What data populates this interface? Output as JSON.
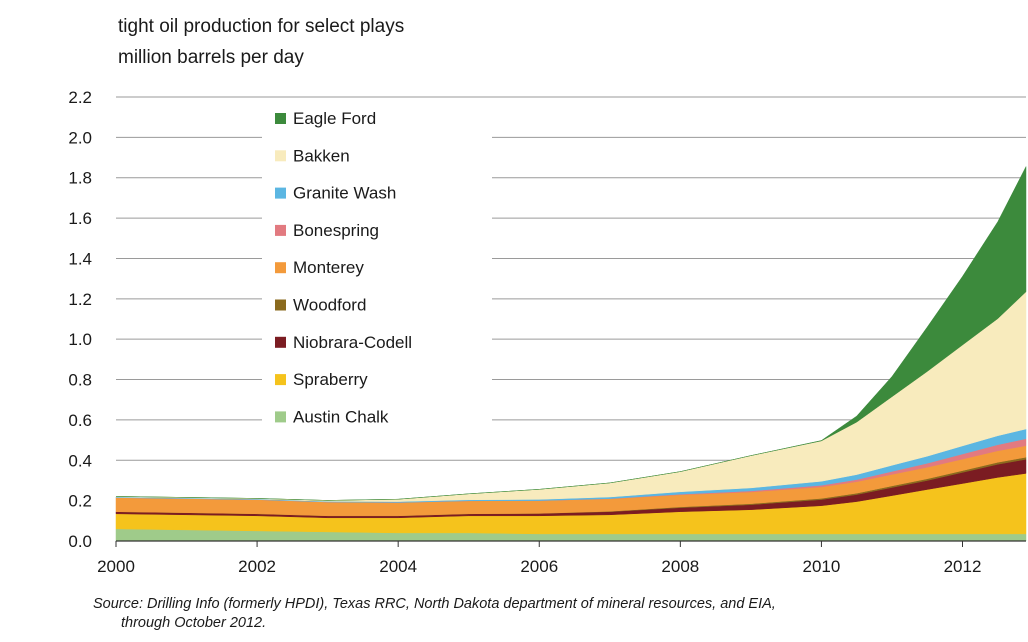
{
  "chart_data": {
    "type": "area",
    "title_lines": [
      "tight oil production for select plays",
      "million barrels per day"
    ],
    "xlabel": "",
    "ylabel": "",
    "xlim": [
      2000,
      2012.9
    ],
    "ylim": [
      0,
      2.2
    ],
    "x_ticks": [
      "2000",
      "2002",
      "2004",
      "2006",
      "2008",
      "2010",
      "2012"
    ],
    "y_ticks": [
      "0.0",
      "0.2",
      "0.4",
      "0.6",
      "0.8",
      "1.0",
      "1.2",
      "1.4",
      "1.6",
      "1.8",
      "2.0",
      "2.2"
    ],
    "grid": "horizontal",
    "legend_position": "upper-left",
    "legend_order": [
      "Eagle Ford",
      "Bakken",
      "Granite Wash",
      "Bonespring",
      "Monterey",
      "Woodford",
      "Niobrara-Codell",
      "Spraberry",
      "Austin Chalk"
    ],
    "x": [
      2000,
      2001,
      2002,
      2003,
      2004,
      2005,
      2006,
      2007,
      2008,
      2009,
      2010,
      2010.5,
      2011,
      2011.5,
      2012,
      2012.5,
      2012.9
    ],
    "series": [
      {
        "name": "Austin Chalk",
        "color": "#9fcb8a",
        "values": [
          0.06,
          0.055,
          0.05,
          0.045,
          0.04,
          0.04,
          0.035,
          0.035,
          0.035,
          0.035,
          0.035,
          0.035,
          0.035,
          0.035,
          0.035,
          0.035,
          0.035
        ]
      },
      {
        "name": "Spraberry",
        "color": "#f5c31c",
        "values": [
          0.075,
          0.075,
          0.075,
          0.07,
          0.075,
          0.085,
          0.09,
          0.095,
          0.11,
          0.12,
          0.14,
          0.16,
          0.19,
          0.22,
          0.25,
          0.28,
          0.3
        ]
      },
      {
        "name": "Niobrara-Codell",
        "color": "#7b1c22",
        "values": [
          0.01,
          0.01,
          0.01,
          0.01,
          0.01,
          0.01,
          0.012,
          0.015,
          0.02,
          0.025,
          0.03,
          0.035,
          0.04,
          0.045,
          0.055,
          0.065,
          0.07
        ]
      },
      {
        "name": "Woodford",
        "color": "#8a6a1e",
        "values": [
          0.0,
          0.0,
          0.0,
          0.0,
          0.0,
          0.0,
          0.0,
          0.002,
          0.004,
          0.005,
          0.006,
          0.007,
          0.008,
          0.008,
          0.009,
          0.01,
          0.01
        ]
      },
      {
        "name": "Monterey",
        "color": "#f39a3b",
        "values": [
          0.07,
          0.07,
          0.07,
          0.068,
          0.066,
          0.064,
          0.063,
          0.062,
          0.06,
          0.058,
          0.057,
          0.057,
          0.057,
          0.057,
          0.057,
          0.057,
          0.057
        ]
      },
      {
        "name": "Bonespring",
        "color": "#e27a80",
        "values": [
          0.0,
          0.0,
          0.0,
          0.0,
          0.0,
          0.0,
          0.0,
          0.001,
          0.003,
          0.005,
          0.008,
          0.01,
          0.015,
          0.02,
          0.025,
          0.03,
          0.035
        ]
      },
      {
        "name": "Granite Wash",
        "color": "#5bb6e2",
        "values": [
          0.003,
          0.003,
          0.003,
          0.003,
          0.004,
          0.005,
          0.006,
          0.008,
          0.012,
          0.015,
          0.02,
          0.025,
          0.03,
          0.035,
          0.04,
          0.045,
          0.048
        ]
      },
      {
        "name": "Bakken",
        "color": "#f8ebbd",
        "values": [
          0.003,
          0.003,
          0.003,
          0.005,
          0.012,
          0.03,
          0.05,
          0.07,
          0.1,
          0.16,
          0.2,
          0.26,
          0.34,
          0.42,
          0.5,
          0.58,
          0.68
        ]
      },
      {
        "name": "Eagle Ford",
        "color": "#3c8a3c",
        "values": [
          0.0,
          0.0,
          0.0,
          0.0,
          0.0,
          0.0,
          0.0,
          0.0,
          0.0,
          0.0,
          0.002,
          0.03,
          0.1,
          0.22,
          0.34,
          0.48,
          0.62
        ]
      }
    ],
    "source": "Source:  Drilling Info (formerly HPDI), Texas RRC, North Dakota department of mineral resources, and EIA,",
    "source_cont": "through October 2012."
  }
}
